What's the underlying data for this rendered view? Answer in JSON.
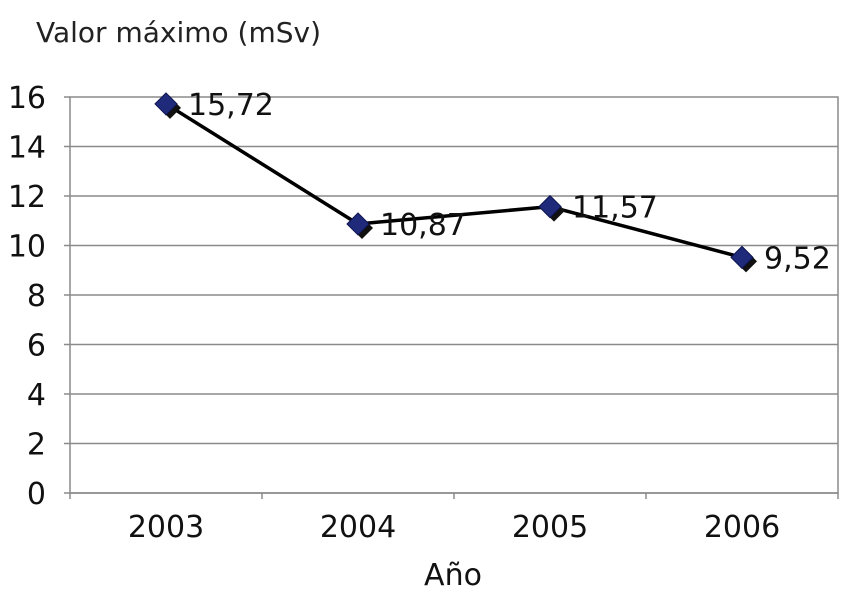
{
  "chart_data": {
    "type": "line",
    "title": "Valor máximo (mSv)",
    "xlabel": "Año",
    "ylabel": "",
    "categories": [
      "2003",
      "2004",
      "2005",
      "2006"
    ],
    "series": [
      {
        "values": [
          15.72,
          10.87,
          11.57,
          9.52
        ],
        "data_labels": [
          "15,72",
          "10,87",
          "11,57",
          "9,52"
        ],
        "color": "#1f2a7a",
        "line_color": "#000000",
        "marker": "diamond"
      }
    ],
    "ylim": [
      0,
      16
    ],
    "yticks": [
      "0",
      "2",
      "4",
      "6",
      "8",
      "10",
      "12",
      "14",
      "16"
    ],
    "grid": true,
    "legend": "none"
  }
}
